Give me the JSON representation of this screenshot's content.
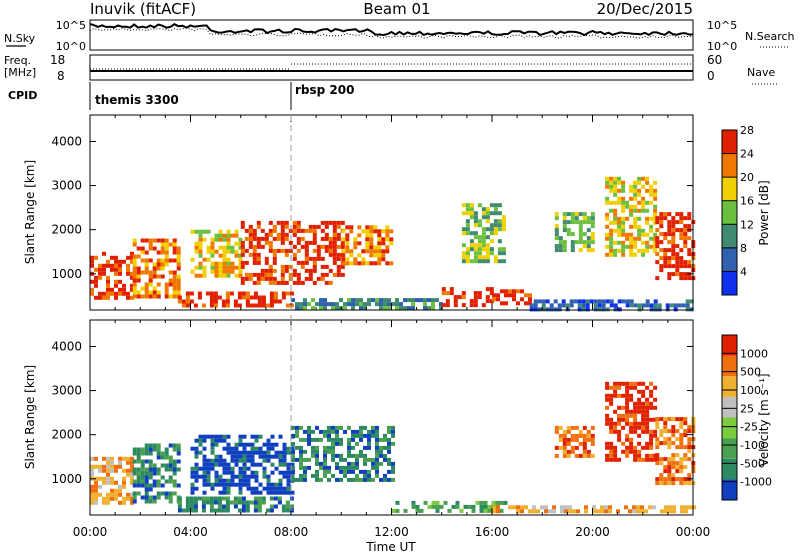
{
  "header": {
    "station": "Inuvik (fitACF)",
    "beam": "Beam 01",
    "date": "20/Dec/2015"
  },
  "summary_panels": {
    "nsky": {
      "label": "N.Sky",
      "y_ticks": [
        "10^5",
        "10^0"
      ],
      "right_label": "N.Search",
      "right_ticks": [
        "10^5",
        "10^0"
      ]
    },
    "freq": {
      "label_line1": "Freq.",
      "label_line2": "[MHz]",
      "y_ticks": [
        "18",
        "8"
      ],
      "right_label": "Nave",
      "right_ticks": [
        "60",
        "0"
      ]
    },
    "cpid": {
      "label": "CPID",
      "segments": [
        {
          "name": "themis 3300",
          "start_hour": 0
        },
        {
          "name": "rbsp 200",
          "start_hour": 8
        }
      ]
    }
  },
  "chart_data": [
    {
      "type": "heatmap",
      "xlabel": "",
      "ylabel": "Slant Range [km]",
      "xlim": [
        0,
        24
      ],
      "ylim": [
        180,
        4600
      ],
      "y_ticks": [
        "1000",
        "2000",
        "3000",
        "4000"
      ],
      "colorbar": {
        "label": "Power [dB]",
        "ticks": [
          "4",
          "8",
          "12",
          "16",
          "20",
          "24",
          "28"
        ],
        "colors": [
          "#1030f0",
          "#3060b0",
          "#408a70",
          "#6cc040",
          "#f0d000",
          "#f07800",
          "#e02000"
        ]
      },
      "patches": [
        {
          "x0": 0.0,
          "x1": 1.7,
          "y0": 500,
          "y1": 1500,
          "level": 6
        },
        {
          "x0": 1.7,
          "x1": 3.5,
          "y0": 500,
          "y1": 1800,
          "level": 5
        },
        {
          "x0": 3.5,
          "x1": 8.0,
          "y0": 250,
          "y1": 600,
          "level": 6
        },
        {
          "x0": 4.0,
          "x1": 6.0,
          "y0": 1000,
          "y1": 2000,
          "level": 4
        },
        {
          "x0": 6.0,
          "x1": 10.0,
          "y0": 800,
          "y1": 2200,
          "level": 6
        },
        {
          "x0": 10.0,
          "x1": 12.0,
          "y0": 1200,
          "y1": 2100,
          "level": 5
        },
        {
          "x0": 8.0,
          "x1": 14.0,
          "y0": 250,
          "y1": 450,
          "level": 2
        },
        {
          "x0": 14.0,
          "x1": 16.0,
          "y0": 300,
          "y1": 700,
          "level": 6
        },
        {
          "x0": 16.0,
          "x1": 17.5,
          "y0": 300,
          "y1": 650,
          "level": 6
        },
        {
          "x0": 17.5,
          "x1": 24.0,
          "y0": 220,
          "y1": 420,
          "level": 1
        },
        {
          "x0": 14.8,
          "x1": 16.5,
          "y0": 1300,
          "y1": 2600,
          "level": 3
        },
        {
          "x0": 18.5,
          "x1": 20.0,
          "y0": 1500,
          "y1": 2400,
          "level": 3
        },
        {
          "x0": 20.5,
          "x1": 22.5,
          "y0": 1400,
          "y1": 3200,
          "level": 4
        },
        {
          "x0": 22.5,
          "x1": 24.0,
          "y0": 900,
          "y1": 2400,
          "level": 6
        }
      ]
    },
    {
      "type": "heatmap",
      "xlabel": "Time UT",
      "ylabel": "Slant Range [km]",
      "xlim": [
        0,
        24
      ],
      "ylim": [
        180,
        4600
      ],
      "x_ticks": [
        "00:00",
        "04:00",
        "08:00",
        "12:00",
        "16:00",
        "20:00",
        "00:00"
      ],
      "y_ticks": [
        "1000",
        "2000",
        "3000",
        "4000"
      ],
      "colorbar": {
        "label": "Velocity [m s⁻¹]",
        "ticks": [
          "1000",
          "500",
          "100",
          "25",
          "-25",
          "-100",
          "-500",
          "-1000"
        ],
        "colors": [
          "#1040c0",
          "#2d8a60",
          "#4aa050",
          "#7ccc40",
          "#c0c0c0",
          "#f0b030",
          "#f07010",
          "#e02000"
        ]
      },
      "patches": [
        {
          "x0": 0.0,
          "x1": 1.7,
          "y0": 500,
          "y1": 1500,
          "level": 5
        },
        {
          "x0": 1.7,
          "x1": 3.5,
          "y0": 500,
          "y1": 1800,
          "level": 1
        },
        {
          "x0": 3.5,
          "x1": 8.0,
          "y0": 250,
          "y1": 600,
          "level": 1
        },
        {
          "x0": 4.0,
          "x1": 8.0,
          "y0": 700,
          "y1": 2000,
          "level": 0
        },
        {
          "x0": 8.0,
          "x1": 12.0,
          "y0": 1000,
          "y1": 2200,
          "level": 1
        },
        {
          "x0": 12.0,
          "x1": 16.5,
          "y0": 250,
          "y1": 500,
          "level": 2
        },
        {
          "x0": 16.0,
          "x1": 24.0,
          "y0": 220,
          "y1": 400,
          "level": 5
        },
        {
          "x0": 18.5,
          "x1": 20.0,
          "y0": 1500,
          "y1": 2200,
          "level": 6
        },
        {
          "x0": 20.5,
          "x1": 22.5,
          "y0": 1400,
          "y1": 3200,
          "level": 7
        },
        {
          "x0": 22.5,
          "x1": 24.0,
          "y0": 900,
          "y1": 2400,
          "level": 6
        }
      ]
    }
  ]
}
